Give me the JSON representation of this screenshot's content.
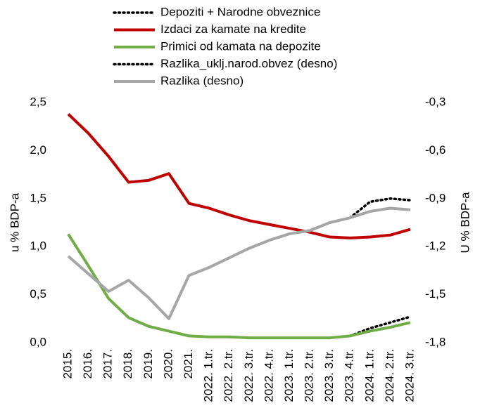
{
  "chart_data": {
    "type": "line",
    "categories": [
      "2015.",
      "2016.",
      "2017.",
      "2018.",
      "2019.",
      "2020.",
      "2021.",
      "2022. 1.tr.",
      "2022. 2.tr.",
      "2022. 3.tr.",
      "2022. 4.tr.",
      "2023. 1.tr.",
      "2023. 2.tr.",
      "2023. 3.tr.",
      "2023. 4.tr.",
      "2024. 1.tr.",
      "2024. 2.tr.",
      "2024. 3.tr."
    ],
    "ylabel": "u % BDP-a",
    "y2label": "U % BDP-a",
    "ylim": [
      0,
      2.5
    ],
    "yticks": [
      {
        "value": 0,
        "label": "0,0"
      },
      {
        "value": 0.5,
        "label": "0,5"
      },
      {
        "value": 1,
        "label": "1,0"
      },
      {
        "value": 1.5,
        "label": "1,5"
      },
      {
        "value": 2,
        "label": "2,0"
      },
      {
        "value": 2.5,
        "label": "2,5"
      }
    ],
    "y2lim": [
      -1.8,
      -0.3
    ],
    "y2ticks": [
      {
        "value": -1.8,
        "label": "-1,8"
      },
      {
        "value": -1.5,
        "label": "-1,5"
      },
      {
        "value": -1.2,
        "label": "-1,2"
      },
      {
        "value": -0.9,
        "label": "-0,9"
      },
      {
        "value": -0.6,
        "label": "-0,6"
      },
      {
        "value": -0.3,
        "label": "-0,3"
      }
    ],
    "series": [
      {
        "name": "Depoziti + Narodne obveznice",
        "color": "#000000",
        "style": "dotted",
        "axis": "y",
        "values": [
          null,
          null,
          null,
          null,
          null,
          null,
          null,
          null,
          null,
          null,
          null,
          null,
          null,
          null,
          0.07,
          0.15,
          0.21,
          0.27
        ]
      },
      {
        "name": "Izdaci za kamate na kredite",
        "color": "#c00000",
        "style": "solid",
        "axis": "y",
        "values": [
          2.38,
          2.18,
          1.94,
          1.67,
          1.69,
          1.76,
          1.45,
          1.4,
          1.33,
          1.27,
          1.23,
          1.19,
          1.15,
          1.1,
          1.09,
          1.1,
          1.12,
          1.18
        ]
      },
      {
        "name": "Primici od kamata na depozite",
        "color": "#70ad47",
        "style": "solid",
        "axis": "y",
        "values": [
          1.13,
          0.8,
          0.46,
          0.26,
          0.17,
          0.12,
          0.07,
          0.06,
          0.06,
          0.05,
          0.05,
          0.05,
          0.05,
          0.05,
          0.07,
          0.12,
          0.16,
          0.21
        ]
      },
      {
        "name": "Razlika_uklj.narod.obvez (desno)",
        "color": "#000000",
        "style": "dotted",
        "axis": "y2",
        "values": [
          null,
          null,
          null,
          null,
          null,
          null,
          null,
          null,
          null,
          null,
          null,
          null,
          null,
          null,
          -1.02,
          -0.92,
          -0.9,
          -0.91
        ]
      },
      {
        "name": "Razlika (desno)",
        "color": "#a6a6a6",
        "style": "solid",
        "axis": "y2",
        "values": [
          -1.26,
          -1.37,
          -1.48,
          -1.41,
          -1.52,
          -1.65,
          -1.38,
          -1.33,
          -1.27,
          -1.21,
          -1.16,
          -1.12,
          -1.1,
          -1.05,
          -1.02,
          -0.98,
          -0.96,
          -0.97
        ]
      }
    ]
  }
}
